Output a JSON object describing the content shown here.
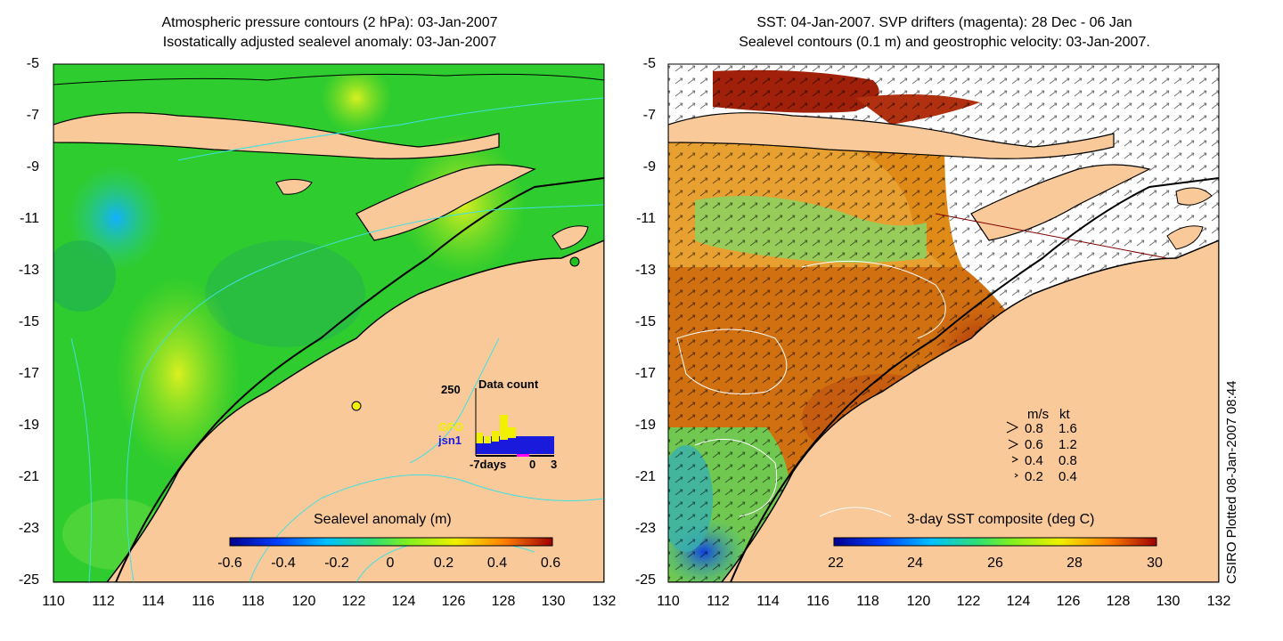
{
  "left_map": {
    "title_line1": "Atmospheric pressure contours (2 hPa): 03-Jan-2007",
    "title_line2": "Isostatically adjusted sealevel anomaly: 03-Jan-2007",
    "colorbar_title": "Sealevel anomaly (m)",
    "colorbar_ticks": [
      "-0.6",
      "-0.4",
      "-0.2",
      "0",
      "0.2",
      "0.4",
      "0.6"
    ],
    "inset": {
      "title": "Data count",
      "max_label": "250",
      "gfo_label": "GFO",
      "jsn1_label": "jsn1",
      "x_label_left": "-7days",
      "x_label_mid": "0",
      "x_label_right": "3"
    }
  },
  "right_map": {
    "title_line1": "SST: 04-Jan-2007. SVP drifters (magenta): 28 Dec - 06 Jan",
    "title_line2": "Sealevel contours (0.1 m) and geostrophic velocity: 03-Jan-2007.",
    "colorbar_title": "3-day SST composite (deg C)",
    "colorbar_ticks": [
      "22",
      "24",
      "26",
      "28",
      "30"
    ],
    "velocity_legend": {
      "header_ms": "m/s",
      "header_kt": "kt",
      "rows": [
        {
          "ms": "0.8",
          "kt": "1.6"
        },
        {
          "ms": "0.6",
          "kt": "1.2"
        },
        {
          "ms": "0.4",
          "kt": "0.8"
        },
        {
          "ms": "0.2",
          "kt": "0.4"
        }
      ]
    }
  },
  "axes": {
    "lat_ticks": [
      "-5",
      "-7",
      "-9",
      "-11",
      "-13",
      "-15",
      "-17",
      "-19",
      "-21",
      "-23",
      "-25"
    ],
    "lon_ticks": [
      "110",
      "112",
      "114",
      "116",
      "118",
      "120",
      "122",
      "124",
      "126",
      "128",
      "130",
      "132"
    ]
  },
  "credit": "CSIRO Plotted 08-Jan-2007 08:44",
  "colors": {
    "land": "#f9c99a",
    "ocean_green": "#2ecc2e",
    "sst_orange": "#e07a10",
    "sst_red": "#a0200a",
    "gfo": "#ffff00",
    "jsn1": "#1a1adc",
    "contour": "#40e0e0"
  }
}
